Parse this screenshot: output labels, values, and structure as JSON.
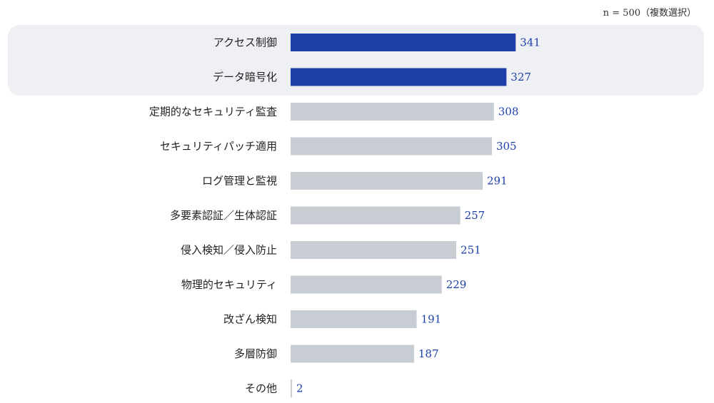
{
  "note": "n = 500（複数選択）",
  "chart_data": {
    "type": "bar",
    "orientation": "horizontal",
    "categories": [
      "アクセス制御",
      "データ暗号化",
      "定期的なセキュリティ監査",
      "セキュリティパッチ適用",
      "ログ管理と監視",
      "多要素認証／生体認証",
      "侵入検知／侵入防止",
      "物理的セキュリティ",
      "改ざん検知",
      "多層防御",
      "その他"
    ],
    "values": [
      341,
      327,
      308,
      305,
      291,
      257,
      251,
      229,
      191,
      187,
      2
    ],
    "highlighted": [
      0,
      1
    ],
    "title": "",
    "xlabel": "",
    "ylabel": "",
    "xlim": [
      0,
      500
    ],
    "grid": false,
    "legend": "none",
    "colors": {
      "highlight_bar": "#1c3fa8",
      "normal_bar": "#c8ccd3",
      "value_text": "#1c3fa8",
      "highlight_background": "#eef0f4"
    }
  }
}
